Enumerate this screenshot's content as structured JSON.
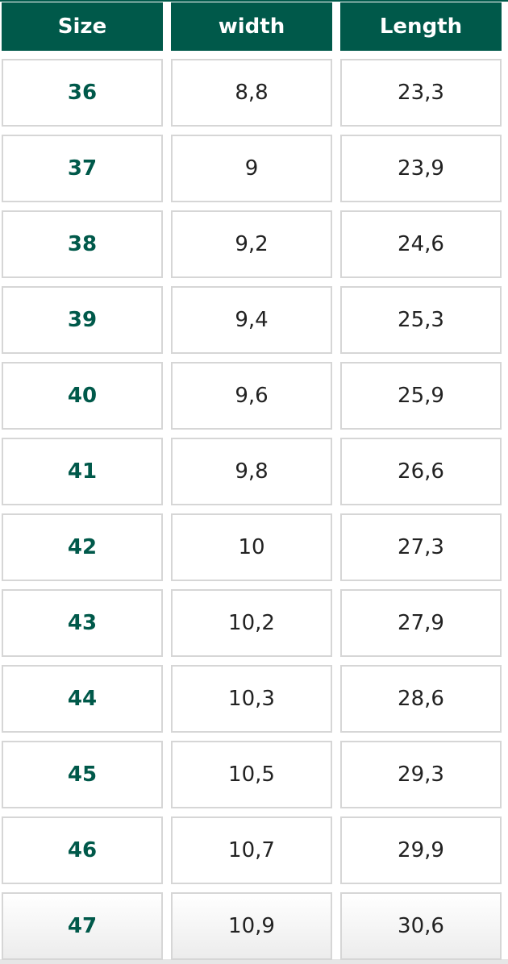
{
  "colors": {
    "header_bg": "#00594a",
    "size_text": "#00594a",
    "border": "#d6d6d6"
  },
  "headers": [
    "Size",
    "width",
    "Length"
  ],
  "rows": [
    [
      "36",
      "8,8",
      "23,3"
    ],
    [
      "37",
      "9",
      "23,9"
    ],
    [
      "38",
      "9,2",
      "24,6"
    ],
    [
      "39",
      "9,4",
      "25,3"
    ],
    [
      "40",
      "9,6",
      "25,9"
    ],
    [
      "41",
      "9,8",
      "26,6"
    ],
    [
      "42",
      "10",
      "27,3"
    ],
    [
      "43",
      "10,2",
      "27,9"
    ],
    [
      "44",
      "10,3",
      "28,6"
    ],
    [
      "45",
      "10,5",
      "29,3"
    ],
    [
      "46",
      "10,7",
      "29,9"
    ],
    [
      "47",
      "10,9",
      "30,6"
    ]
  ]
}
